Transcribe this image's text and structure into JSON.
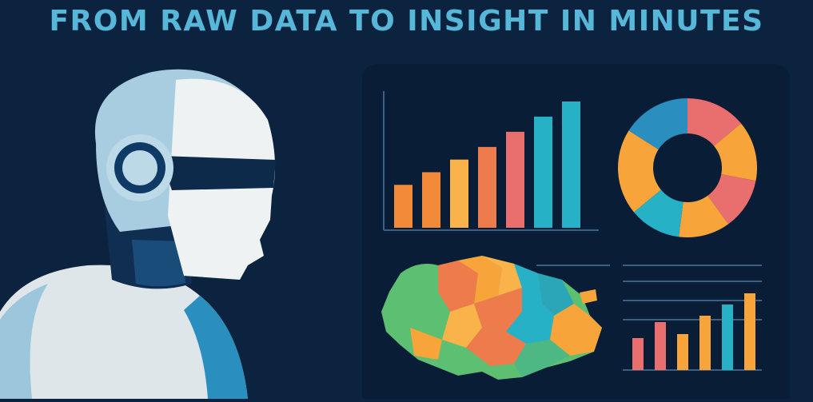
{
  "headline": "FROM RAW DATA TO INSIGHT IN MINUTES",
  "colors": {
    "background": "#0c2340",
    "panel": "#0a1d36",
    "headline": "#56b7d8",
    "palette": [
      "#f28a3a",
      "#f7a43a",
      "#f9b34a",
      "#ee7b4b",
      "#e96f6f",
      "#26b1c6",
      "#2aa6b8",
      "#5cbf72",
      "#4db884"
    ]
  },
  "illustration": {
    "subject": "robot-head-icon",
    "dashboard_widgets": [
      "bar-chart-icon",
      "donut-chart-icon",
      "region-map-icon",
      "mini-bar-chart-icon"
    ]
  },
  "chart_data": [
    {
      "type": "bar",
      "values": [
        34,
        44,
        54,
        64,
        76,
        88,
        100
      ],
      "colors": [
        "#f28a3a",
        "#f28a3a",
        "#f9b34a",
        "#ee7b4b",
        "#e96f6f",
        "#26b1c6",
        "#26b1c6"
      ],
      "ylim": [
        0,
        100
      ]
    },
    {
      "type": "pie",
      "values": [
        14,
        14,
        12,
        12,
        12,
        20,
        16
      ],
      "colors": [
        "#e96f6f",
        "#f7a43a",
        "#e96f6f",
        "#f7a43a",
        "#26b1c6",
        "#f7a43a",
        "#2a8fbf"
      ]
    },
    {
      "type": "bar",
      "values": [
        40,
        60,
        45,
        68,
        82,
        96
      ],
      "colors": [
        "#e96f6f",
        "#e96f6f",
        "#f7a43a",
        "#f7a43a",
        "#26b1c6",
        "#f7a43a"
      ],
      "ylim": [
        0,
        100
      ]
    }
  ]
}
